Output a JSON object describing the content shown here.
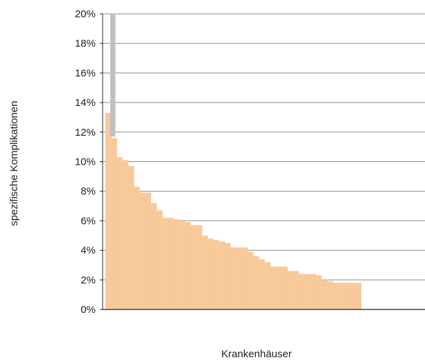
{
  "chart_data": {
    "type": "bar",
    "xlabel": "Krankenhäuser",
    "ylabel": "spezifische Komplikationen",
    "ylim": [
      0,
      20
    ],
    "yticks": [
      "0%",
      "2%",
      "4%",
      "6%",
      "8%",
      "10%",
      "12%",
      "14%",
      "16%",
      "18%",
      "20%"
    ],
    "grid": true,
    "colors": {
      "bars": "#f8c99b",
      "outlier": "#c0c0c4",
      "grid": "#8a8a8a",
      "axis": "#222222"
    },
    "outlier": {
      "label_note": "value exceeds axis (truncated at 20%)",
      "visible_top": 20,
      "lower_value": 11.7
    },
    "values": [
      13.3,
      11.6,
      10.3,
      10.1,
      9.7,
      8.3,
      7.9,
      7.9,
      7.2,
      6.7,
      6.2,
      6.2,
      6.1,
      6.0,
      5.9,
      5.7,
      5.7,
      5.0,
      4.8,
      4.7,
      4.6,
      4.5,
      4.2,
      4.2,
      4.2,
      3.9,
      3.6,
      3.4,
      3.2,
      2.9,
      2.9,
      2.9,
      2.6,
      2.6,
      2.4,
      2.4,
      2.4,
      2.3,
      2.0,
      1.9,
      1.8,
      1.8,
      1.8,
      1.8,
      1.8
    ]
  }
}
